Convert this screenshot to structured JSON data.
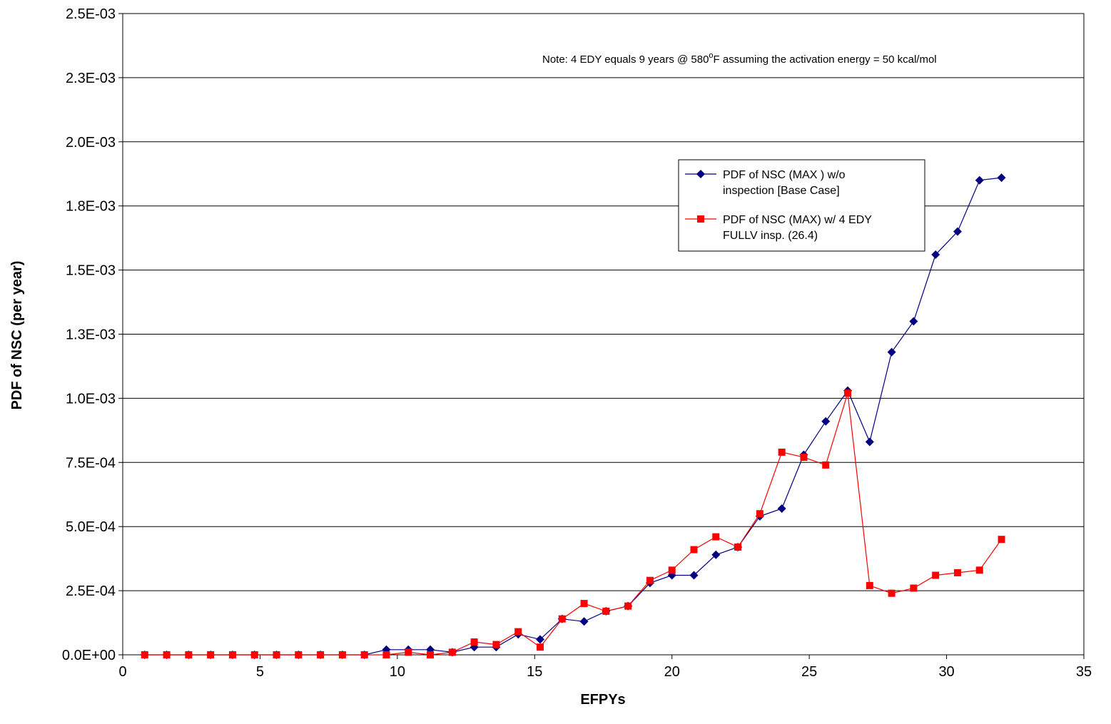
{
  "chart_data": {
    "type": "line",
    "xlabel": "EFPYs",
    "ylabel": "PDF of NSC (per year)",
    "xlim": [
      0,
      35
    ],
    "ylim": [
      0,
      0.0025
    ],
    "x_ticks": [
      "0",
      "5",
      "10",
      "15",
      "20",
      "25",
      "30",
      "35"
    ],
    "y_ticks": [
      "0.0E+00",
      "2.5E-04",
      "5.0E-04",
      "7.5E-04",
      "1.0E-03",
      "1.3E-03",
      "1.5E-03",
      "1.8E-03",
      "2.0E-03",
      "2.3E-03",
      "2.5E-03"
    ],
    "grid": "horizontal",
    "legend_position": "right",
    "note": {
      "prefix": "Note:  4 EDY equals 9 years @ 580",
      "sup": "o",
      "suffix": "F assuming the activation energy = 50 kcal/mol"
    },
    "x": [
      0.8,
      1.6,
      2.4,
      3.2,
      4.0,
      4.8,
      5.6,
      6.4,
      7.2,
      8.0,
      8.8,
      9.6,
      10.4,
      11.2,
      12.0,
      12.8,
      13.6,
      14.4,
      15.2,
      16.0,
      16.8,
      17.6,
      18.4,
      19.2,
      20.0,
      20.8,
      21.6,
      22.4,
      23.2,
      24.0,
      24.8,
      25.6,
      26.4,
      27.2,
      28.0,
      28.8,
      29.6,
      30.4,
      31.2,
      32.0
    ],
    "series": [
      {
        "name": "PDF of NSC (MAX ) w/o inspection [Base Case]",
        "legend_lines": [
          "PDF of NSC (MAX ) w/o",
          "inspection [Base Case]"
        ],
        "color": "#000080",
        "marker": "diamond",
        "values": [
          0,
          0,
          0,
          0,
          0,
          0,
          0,
          0,
          0,
          0,
          0,
          2e-05,
          2e-05,
          2e-05,
          1e-05,
          3e-05,
          3e-05,
          8e-05,
          6e-05,
          0.00014,
          0.00013,
          0.00017,
          0.00019,
          0.00028,
          0.00031,
          0.00031,
          0.00039,
          0.00042,
          0.00054,
          0.00057,
          0.00078,
          0.00091,
          0.00103,
          0.00083,
          0.00118,
          0.0013,
          0.00156,
          0.00165,
          0.00185,
          0.00186
        ]
      },
      {
        "name": "PDF of NSC (MAX) w/ 4 EDY FULLV insp. (26.4)",
        "legend_lines": [
          "PDF of NSC (MAX) w/ 4 EDY",
          "FULLV insp. (26.4)"
        ],
        "color": "#ff0000",
        "marker": "square",
        "values": [
          0,
          0,
          0,
          0,
          0,
          0,
          0,
          0,
          0,
          0,
          0,
          0,
          1e-05,
          0,
          1e-05,
          5e-05,
          4e-05,
          9e-05,
          3e-05,
          0.00014,
          0.0002,
          0.00017,
          0.00019,
          0.00029,
          0.00033,
          0.00041,
          0.00046,
          0.00042,
          0.00055,
          0.00079,
          0.00077,
          0.00074,
          0.00102,
          0.00027,
          0.00024,
          0.00026,
          0.00031,
          0.00032,
          0.00033,
          0.00045
        ]
      }
    ]
  }
}
